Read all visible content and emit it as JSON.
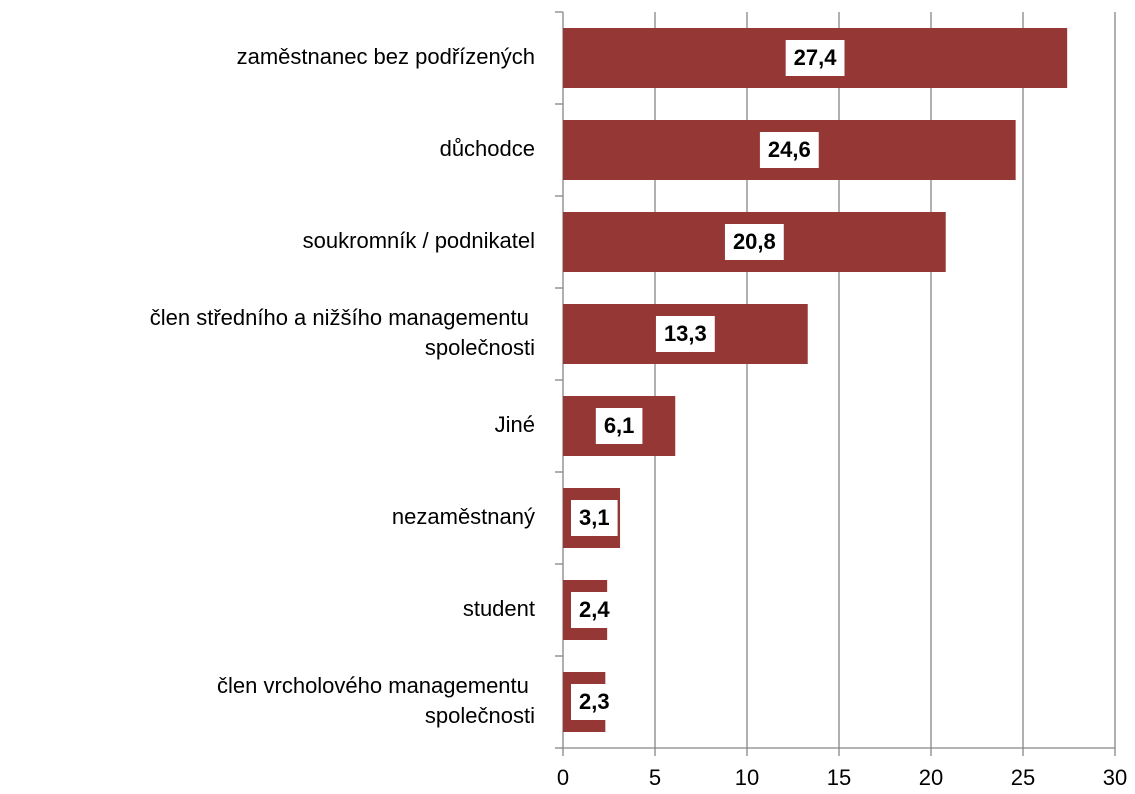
{
  "chart_data": {
    "type": "bar",
    "orientation": "horizontal",
    "categories": [
      "zaměstnanec bez podřízených",
      "důchodce",
      "soukromník / podnikatel",
      "člen středního a nižšího managementu společnosti",
      "Jiné",
      "nezaměstnaný",
      "student",
      "člen vrcholového managementu společnosti"
    ],
    "values": [
      27.4,
      24.6,
      20.8,
      13.3,
      6.1,
      3.1,
      2.4,
      2.3
    ],
    "value_labels": [
      "27,4",
      "24,6",
      "20,8",
      "13,3",
      "6,1",
      "3,1",
      "2,4",
      "2,3"
    ],
    "color": "#953735",
    "xlim": [
      0,
      30
    ],
    "xticks": [
      0,
      5,
      10,
      15,
      20,
      25,
      30
    ],
    "grid": true
  }
}
